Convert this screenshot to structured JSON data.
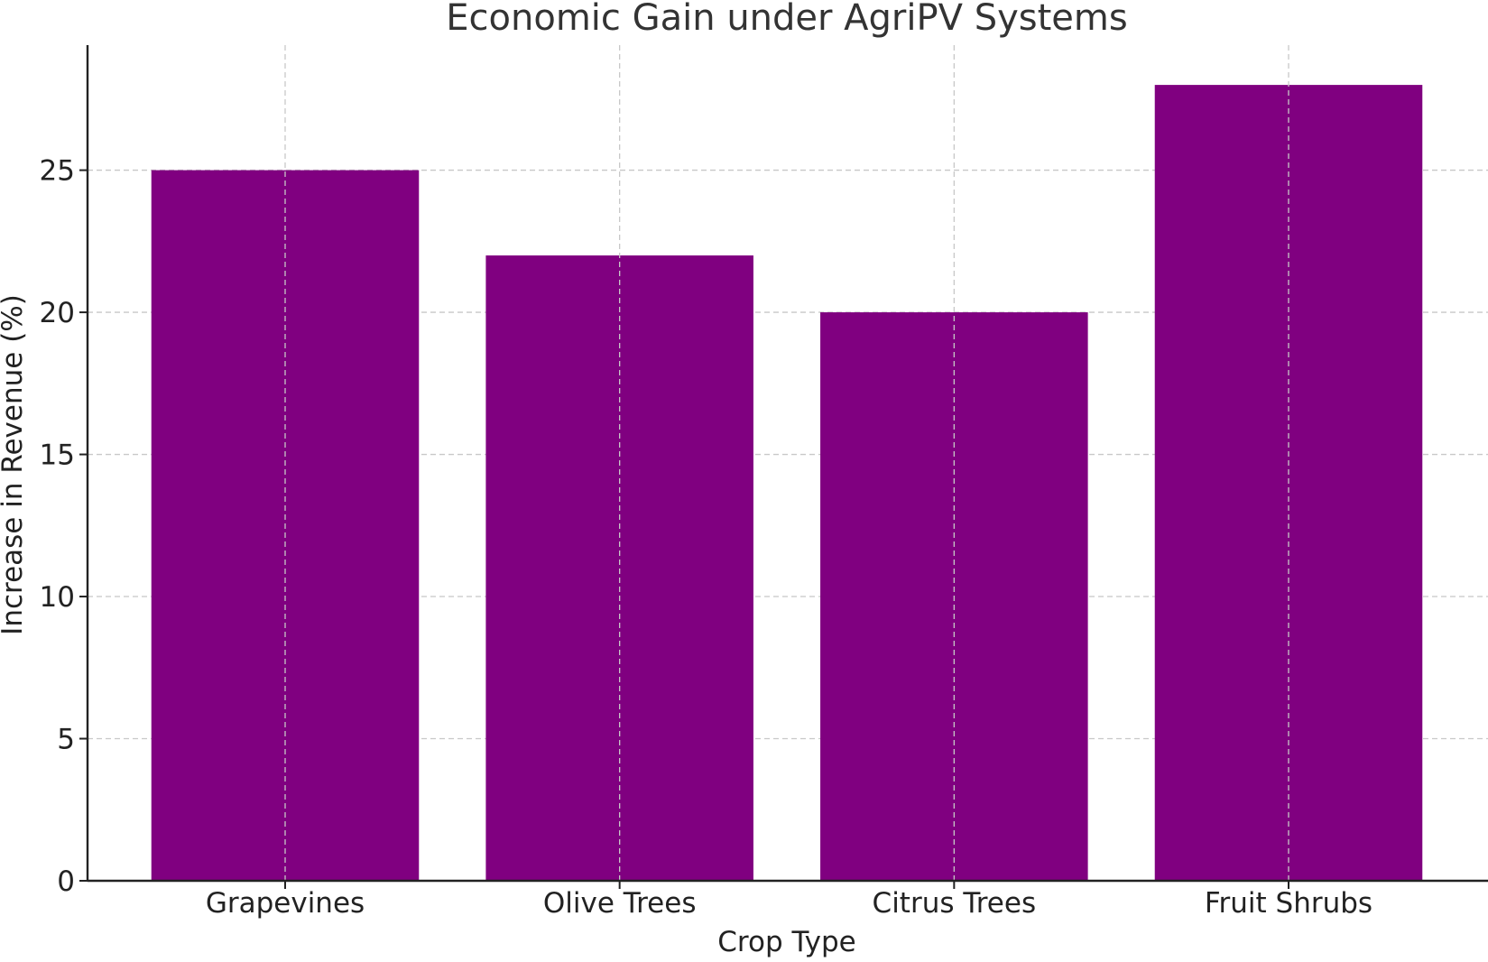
{
  "chart_data": {
    "type": "bar",
    "title": "Economic Gain under AgriPV Systems",
    "xlabel": "Crop Type",
    "ylabel": "Increase in Revenue (%)",
    "categories": [
      "Grapevines",
      "Olive Trees",
      "Citrus Trees",
      "Fruit Shrubs"
    ],
    "values": [
      25,
      22,
      20,
      28
    ],
    "ylim": [
      0,
      29.4
    ],
    "yticks": [
      0,
      5,
      10,
      15,
      20,
      25
    ],
    "grid": true,
    "bar_color": "#800080"
  }
}
